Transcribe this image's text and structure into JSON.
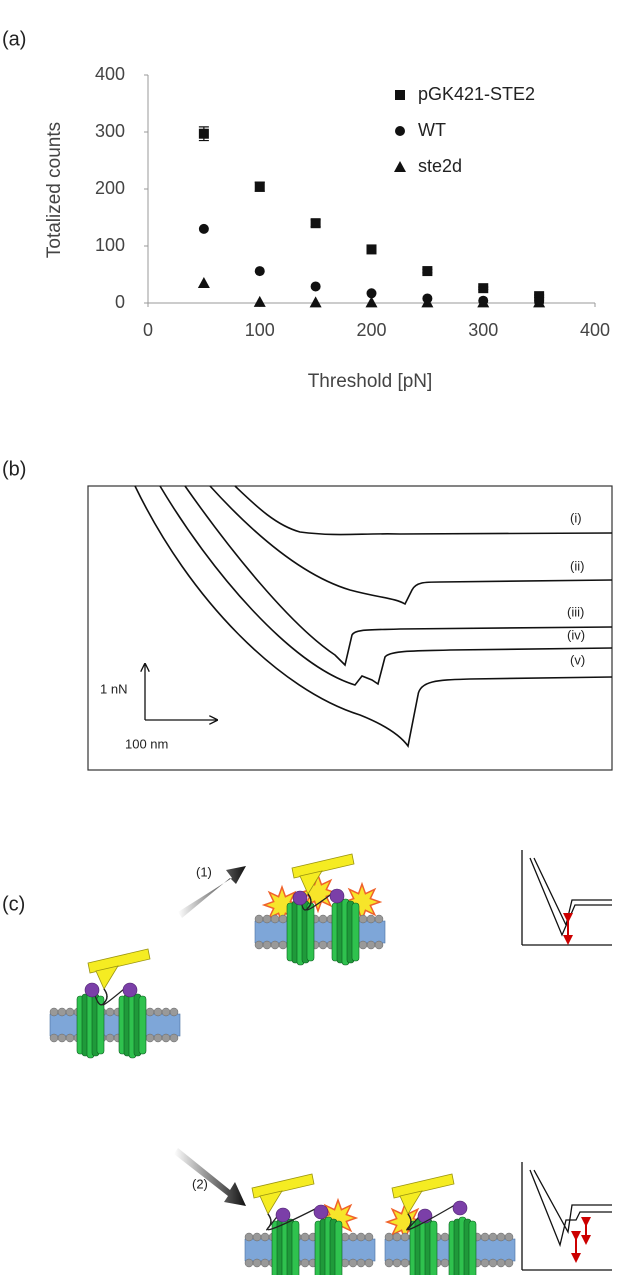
{
  "panel_labels": [
    "(a)",
    "(b)",
    "(c)"
  ],
  "chart_data": {
    "type": "scatter",
    "xlabel": "Threshold [pN]",
    "ylabel": "Totalized counts",
    "x": [
      50,
      100,
      150,
      200,
      250,
      300,
      350
    ],
    "series": [
      {
        "name": "pGK421-STE2",
        "color": "#111111",
        "marker": "square",
        "values": [
          297,
          204,
          140,
          94,
          56,
          26,
          12
        ],
        "errors": [
          12,
          8,
          6,
          4,
          3,
          2,
          2
        ]
      },
      {
        "name": "WT",
        "color": "#111111",
        "marker": "circle",
        "values": [
          130,
          56,
          29,
          17,
          8,
          4,
          2
        ]
      },
      {
        "name": "ste2d",
        "color": "#111111",
        "marker": "triangle",
        "values": [
          35,
          2,
          1,
          1,
          1,
          1,
          1
        ]
      }
    ],
    "xlim": [
      0,
      400
    ],
    "xticks": [
      0,
      100,
      200,
      300,
      400
    ],
    "ylim": [
      0,
      400
    ],
    "yticks": [
      0,
      100,
      200,
      300,
      400
    ],
    "legend": "upper right"
  },
  "panel_b": {
    "trace_labels": [
      "(i)",
      "(ii)",
      "(iii)",
      "(iv)",
      "(v)"
    ],
    "scale_labels": [
      "1 nN",
      "100 nm"
    ]
  },
  "panel_c": {
    "step_labels": [
      "(1)",
      "(2)"
    ]
  }
}
